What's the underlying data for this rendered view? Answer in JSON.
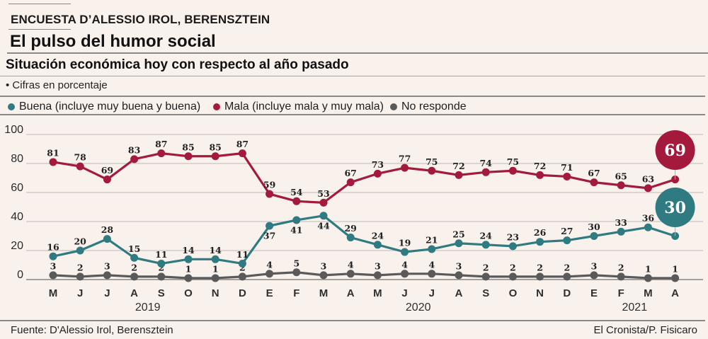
{
  "header": {
    "kicker": "ENCUESTA D’ALESSIO IROL, BERENSZTEIN",
    "title": "El pulso del humor social",
    "subtitle": "Situación económica hoy con respecto al año pasado",
    "note": "• Cifras en porcentaje"
  },
  "legend": [
    {
      "label": "Buena (incluye muy buena y buena)",
      "color": "#2f7b81"
    },
    {
      "label": "Mala (incluye mala y muy mala)",
      "color": "#a31a3d"
    },
    {
      "label": "No responde",
      "color": "#5a5a5a"
    }
  ],
  "footer": {
    "source": "Fuente: D'Alessio Irol, Berensztein",
    "credit": "El Cronista/P. Fisicaro"
  },
  "chart_data": {
    "type": "line",
    "title": "Situación económica hoy con respecto al año pasado",
    "subtitle": "Cifras en porcentaje",
    "xlabel": "",
    "ylabel": "",
    "ylim": [
      0,
      100
    ],
    "yticks": [
      0,
      20,
      40,
      60,
      80,
      100
    ],
    "grid": true,
    "legend": "top",
    "categories": [
      "M",
      "J",
      "J",
      "A",
      "S",
      "O",
      "N",
      "D",
      "E",
      "F",
      "M",
      "A",
      "M",
      "J",
      "J",
      "A",
      "S",
      "O",
      "N",
      "D",
      "E",
      "F",
      "M",
      "A"
    ],
    "year_labels": [
      {
        "label": "2019",
        "under_categories": [
          3,
          4
        ]
      },
      {
        "label": "2020",
        "under_categories": [
          13,
          14
        ]
      },
      {
        "label": "2021",
        "under_categories": [
          21,
          22
        ]
      }
    ],
    "series": [
      {
        "name": "Buena",
        "color": "#2f7b81",
        "values": [
          16,
          20,
          28,
          15,
          11,
          14,
          14,
          11,
          37,
          41,
          44,
          29,
          24,
          19,
          21,
          25,
          24,
          23,
          26,
          27,
          30,
          33,
          36,
          30
        ]
      },
      {
        "name": "Mala",
        "color": "#a31a3d",
        "values": [
          81,
          78,
          69,
          83,
          87,
          85,
          85,
          87,
          59,
          54,
          53,
          67,
          73,
          77,
          75,
          72,
          74,
          75,
          72,
          71,
          67,
          65,
          63,
          69
        ]
      },
      {
        "name": "No responde",
        "color": "#5a5a5a",
        "values": [
          3,
          2,
          3,
          2,
          2,
          1,
          1,
          2,
          4,
          5,
          3,
          4,
          3,
          4,
          4,
          3,
          2,
          2,
          2,
          2,
          3,
          2,
          1,
          1
        ]
      }
    ],
    "callouts": [
      {
        "series": "Mala",
        "text": "69"
      },
      {
        "series": "Buena",
        "text": "30"
      }
    ]
  }
}
